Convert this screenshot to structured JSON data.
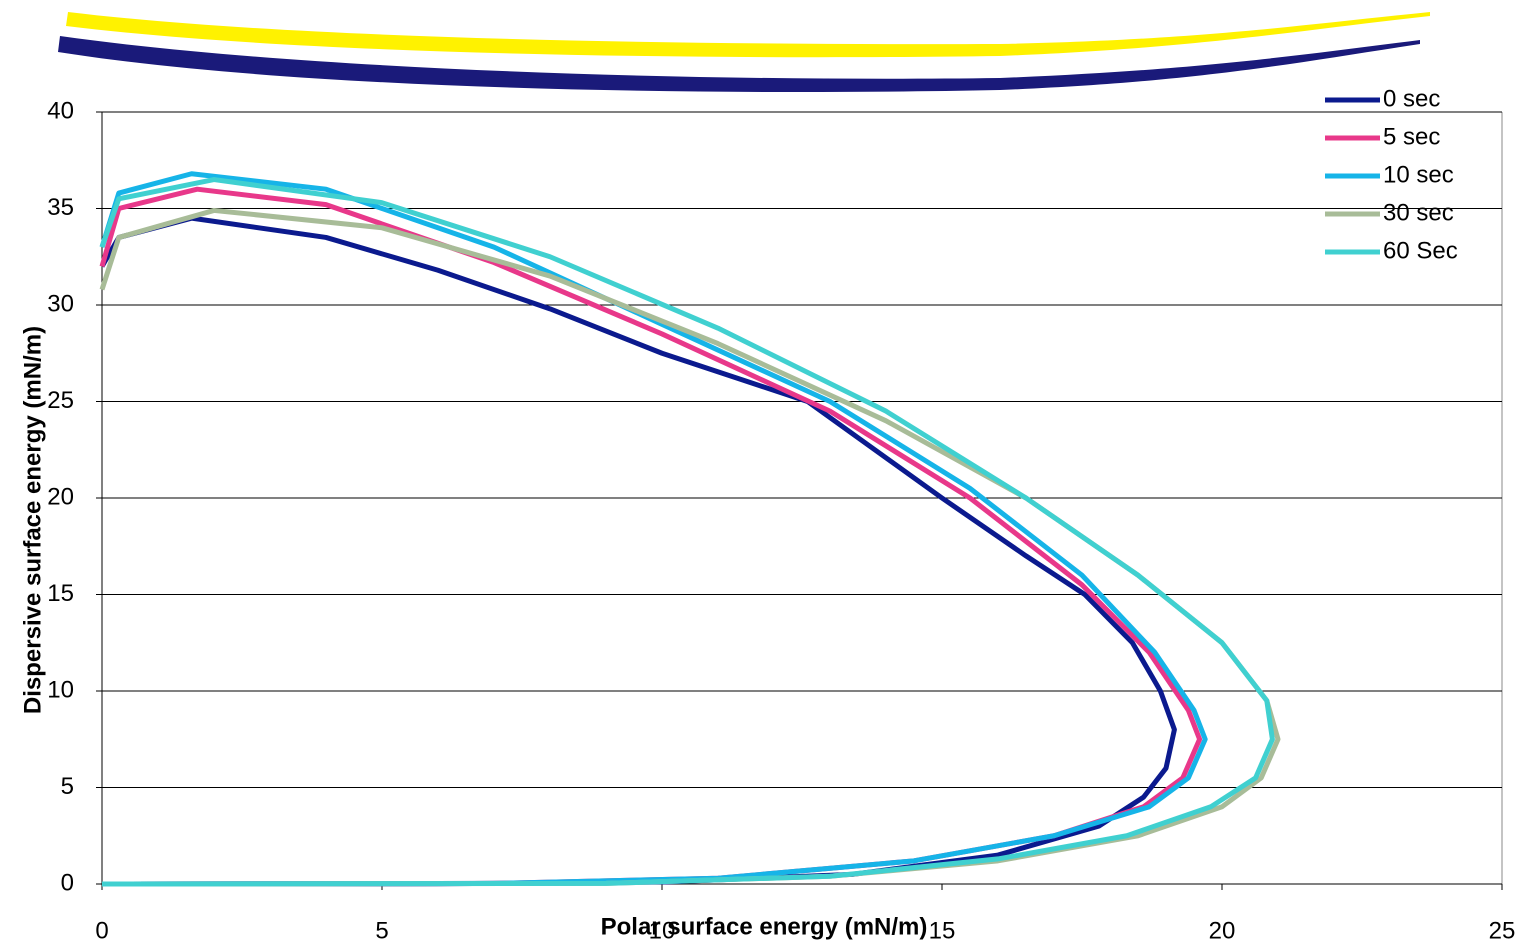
{
  "chart_data": {
    "type": "line",
    "xlabel": "Polar surface energy (mN/m)",
    "ylabel": "Dispersive surface energy (mN/m)",
    "xlim": [
      0,
      25
    ],
    "xticks": [
      0,
      5,
      10,
      15,
      20,
      25
    ],
    "ylim": [
      0,
      40
    ],
    "yticks": [
      0,
      5,
      10,
      15,
      20,
      25,
      30,
      35,
      40
    ],
    "grid": true,
    "legend": "top-right",
    "series": [
      {
        "name": "0 sec",
        "color": "#0b1a8e",
        "x": [
          0,
          0.3,
          1.6,
          4,
          6,
          8,
          10,
          12.6,
          15,
          16.5,
          17.55,
          18.4,
          18.9,
          19.15,
          19,
          18.6,
          17.8,
          16,
          13.4,
          10,
          6,
          0
        ],
        "values": [
          32,
          33.5,
          34.5,
          33.5,
          31.8,
          29.8,
          27.5,
          25,
          20,
          17,
          15,
          12.5,
          10,
          8,
          6,
          4.5,
          3,
          1.5,
          0.5,
          0.1,
          0.01,
          0
        ]
      },
      {
        "name": "5 sec",
        "color": "#e8388a",
        "x": [
          0,
          0.3,
          1.7,
          4,
          7,
          10,
          13,
          15.5,
          17.5,
          18.7,
          19.4,
          19.6,
          19.3,
          18.6,
          17,
          14.5,
          11,
          7,
          0
        ],
        "values": [
          32,
          35,
          36,
          35.2,
          32.2,
          28.5,
          24.5,
          20,
          15.5,
          12,
          9,
          7.5,
          5.5,
          4,
          2.5,
          1.2,
          0.3,
          0.03,
          0
        ]
      },
      {
        "name": "10 sec",
        "color": "#16b4e8",
        "x": [
          0,
          0.3,
          1.6,
          4,
          7,
          10,
          13,
          15.5,
          17.5,
          18.8,
          19.5,
          19.7,
          19.4,
          18.7,
          17,
          14.5,
          11,
          7,
          0
        ],
        "values": [
          33,
          35.8,
          36.8,
          36,
          33,
          29,
          25,
          20.5,
          16,
          12,
          9,
          7.5,
          5.5,
          4,
          2.5,
          1.2,
          0.3,
          0.03,
          0
        ]
      },
      {
        "name": "30 sec",
        "color": "#a8bc98",
        "x": [
          0,
          0.3,
          2,
          5,
          8,
          11,
          14,
          16.5,
          18.5,
          20,
          20.8,
          21,
          20.7,
          20,
          18.5,
          16,
          13,
          9,
          0
        ],
        "values": [
          30.8,
          33.5,
          34.9,
          34,
          31.5,
          28,
          24,
          20,
          16,
          12.5,
          9.5,
          7.5,
          5.5,
          4,
          2.5,
          1.2,
          0.4,
          0.03,
          0
        ]
      },
      {
        "name": "60 Sec",
        "color": "#40d0d0",
        "x": [
          0,
          0.3,
          2,
          5,
          8,
          11,
          14,
          16.5,
          18.5,
          20,
          20.8,
          20.9,
          20.6,
          19.8,
          18.3,
          16,
          13,
          9,
          0
        ],
        "values": [
          33,
          35.5,
          36.5,
          35.3,
          32.5,
          28.8,
          24.5,
          20,
          16,
          12.5,
          9.5,
          7.5,
          5.5,
          4,
          2.5,
          1.3,
          0.4,
          0.03,
          0
        ]
      }
    ]
  }
}
